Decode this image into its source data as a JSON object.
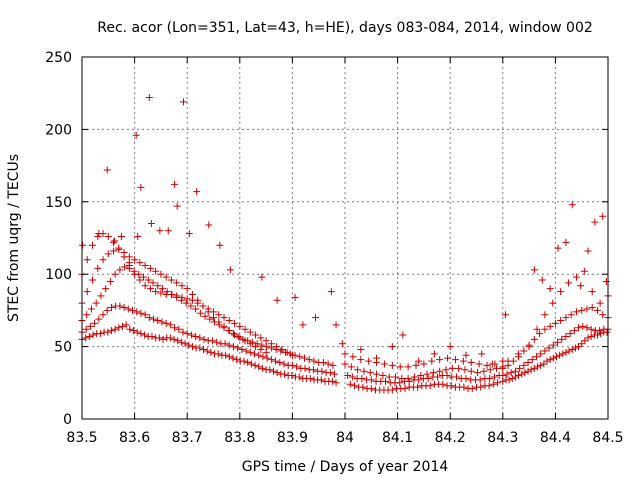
{
  "chart_data": {
    "type": "scatter",
    "title": "Rec. acor (Lon=351, Lat=43, h=HE), days 083-084, 2014, window 002",
    "xlabel": "GPS time / Days of year 2014",
    "ylabel": "STEC from uqrg / TECUs",
    "xlim": [
      83.5,
      84.5
    ],
    "ylim": [
      0,
      250
    ],
    "x_ticks": [
      83.5,
      83.6,
      83.7,
      83.8,
      83.9,
      84.0,
      84.1,
      84.2,
      84.3,
      84.4,
      84.5
    ],
    "x_tick_labels": [
      "83.5",
      "83.6",
      "83.7",
      "83.8",
      "83.9",
      "84",
      "84.1",
      "84.2",
      "84.3",
      "84.4",
      "84.5"
    ],
    "y_ticks": [
      0,
      50,
      100,
      150,
      200,
      250
    ],
    "y_tick_labels": [
      "0",
      "50",
      "100",
      "150",
      "200",
      "250"
    ],
    "grid": true,
    "legend": "none",
    "marker": "+",
    "color": "#cc0000",
    "series": [
      {
        "x": [
          83.5,
          83.507,
          83.514,
          83.521,
          83.528,
          83.535,
          83.542,
          83.549,
          83.556,
          83.563,
          83.57,
          83.577,
          83.584,
          83.591,
          83.598,
          83.605,
          83.612,
          83.619,
          83.626,
          83.633,
          83.64,
          83.647,
          83.654,
          83.661,
          83.668,
          83.675,
          83.682,
          83.689,
          83.696,
          83.703,
          83.71,
          83.717,
          83.724,
          83.731,
          83.738,
          83.745,
          83.752,
          83.759,
          83.766,
          83.773,
          83.78,
          83.787,
          83.794,
          83.801,
          83.808,
          83.815,
          83.822,
          83.829,
          83.836,
          83.843,
          83.85,
          83.857,
          83.864,
          83.871,
          83.878,
          83.885,
          83.892,
          83.899,
          83.906,
          83.913,
          83.92,
          83.927,
          83.934,
          83.941,
          83.948,
          83.955,
          83.962,
          83.969,
          83.976,
          83.983
        ],
        "y": [
          55,
          56,
          57,
          58,
          59,
          59,
          60,
          60,
          61,
          62,
          63,
          64,
          65,
          62,
          61,
          60,
          59,
          58,
          57,
          57,
          56,
          56,
          55,
          56,
          56,
          55,
          54,
          53,
          52,
          51,
          50,
          49,
          49,
          48,
          47,
          46,
          45,
          45,
          44,
          44,
          43,
          42,
          41,
          40,
          40,
          39,
          38,
          37,
          36,
          35,
          34,
          34,
          33,
          32,
          31,
          31,
          30,
          30,
          29,
          29,
          28,
          28,
          28,
          27,
          27,
          27,
          26,
          26,
          26,
          25
        ]
      },
      {
        "x": [
          83.5,
          83.508,
          83.516,
          83.524,
          83.532,
          83.54,
          83.548,
          83.556,
          83.564,
          83.572,
          83.58,
          83.588,
          83.596,
          83.604,
          83.612,
          83.62,
          83.628,
          83.636,
          83.644,
          83.652,
          83.66,
          83.668,
          83.676,
          83.684,
          83.692,
          83.7,
          83.708,
          83.716,
          83.724,
          83.732,
          83.74,
          83.748,
          83.756,
          83.764,
          83.772,
          83.78,
          83.788,
          83.796,
          83.804,
          83.812,
          83.82,
          83.828,
          83.836,
          83.844,
          83.852,
          83.86,
          83.868,
          83.876,
          83.884,
          83.892,
          83.9,
          83.908,
          83.916,
          83.924,
          83.932,
          83.94,
          83.948,
          83.956,
          83.964,
          83.972,
          83.98
        ],
        "y": [
          60,
          62,
          64,
          66,
          69,
          72,
          75,
          77,
          78,
          78,
          77,
          76,
          75,
          74,
          73,
          72,
          70,
          69,
          68,
          67,
          66,
          65,
          63,
          62,
          60,
          59,
          58,
          57,
          56,
          55,
          54,
          54,
          53,
          52,
          52,
          51,
          50,
          49,
          48,
          47,
          46,
          45,
          44,
          43,
          42,
          41,
          40,
          39,
          38,
          37,
          37,
          36,
          35,
          35,
          34,
          34,
          33,
          33,
          32,
          32,
          31
        ]
      },
      {
        "x": [
          83.5,
          83.509,
          83.518,
          83.527,
          83.536,
          83.545,
          83.554,
          83.563,
          83.572,
          83.581,
          83.59,
          83.599,
          83.608,
          83.617,
          83.626,
          83.635,
          83.644,
          83.653,
          83.662,
          83.671,
          83.68,
          83.689,
          83.698,
          83.707,
          83.716,
          83.725,
          83.734,
          83.743,
          83.752,
          83.761,
          83.77,
          83.779,
          83.788,
          83.797,
          83.806,
          83.815,
          83.824,
          83.833,
          83.842,
          83.851,
          83.86,
          83.869,
          83.878,
          83.887,
          83.896,
          83.905,
          83.914,
          83.923,
          83.932,
          83.941,
          83.95,
          83.959,
          83.968,
          83.977
        ],
        "y": [
          68,
          72,
          76,
          80,
          85,
          90,
          95,
          100,
          103,
          105,
          104,
          102,
          100,
          98,
          96,
          94,
          92,
          90,
          88,
          86,
          84,
          82,
          80,
          78,
          76,
          73,
          71,
          69,
          67,
          65,
          63,
          61,
          59,
          57,
          55,
          54,
          53,
          52,
          51,
          50,
          49,
          48,
          47,
          46,
          45,
          44,
          43,
          42,
          41,
          40,
          39,
          39,
          38,
          37
        ]
      },
      {
        "x": [
          83.5,
          83.51,
          83.52,
          83.53,
          83.54,
          83.55,
          83.56,
          83.57,
          83.58,
          83.59,
          83.6,
          83.61,
          83.62,
          83.63,
          83.64,
          83.65,
          83.66,
          83.67,
          83.68,
          83.69,
          83.7,
          83.71,
          83.72,
          83.73,
          83.74,
          83.75,
          83.76,
          83.77,
          83.78,
          83.79,
          83.8,
          83.81,
          83.82,
          83.83,
          83.84,
          83.85
        ],
        "y": [
          80,
          88,
          96,
          104,
          110,
          114,
          116,
          117,
          115,
          112,
          110,
          108,
          106,
          104,
          102,
          100,
          98,
          96,
          94,
          92,
          90,
          86,
          82,
          78,
          74,
          70,
          67,
          64,
          61,
          58,
          56,
          54,
          52,
          50,
          48,
          46
        ]
      },
      {
        "x": [
          83.5,
          83.51,
          83.52,
          83.53,
          83.54,
          83.55,
          83.56,
          83.57,
          83.58,
          83.59,
          83.6,
          83.61,
          83.62,
          83.63,
          83.64,
          83.65,
          83.66,
          83.67,
          83.68,
          83.69,
          83.7,
          83.71,
          83.72,
          83.73,
          83.74,
          83.75,
          83.76,
          83.77,
          83.78,
          83.79,
          83.8,
          83.81,
          83.82,
          83.83,
          83.84,
          83.85,
          83.86,
          83.87,
          83.88,
          83.89,
          83.9
        ],
        "y": [
          100,
          110,
          120,
          126,
          128,
          126,
          122,
          118,
          112,
          106,
          100,
          96,
          92,
          90,
          88,
          87,
          86,
          86,
          85,
          84,
          83,
          82,
          80,
          78,
          76,
          74,
          72,
          70,
          68,
          66,
          64,
          62,
          60,
          58,
          56,
          54,
          52,
          50,
          48,
          46,
          44
        ]
      },
      {
        "x": [
          83.501,
          83.532,
          83.548,
          83.562,
          83.575,
          83.59,
          83.603,
          83.606,
          83.612,
          83.628,
          83.632,
          83.648,
          83.664,
          83.676,
          83.681,
          83.693,
          83.704,
          83.718,
          83.741,
          83.762,
          83.782,
          83.842,
          83.871,
          83.905,
          83.92,
          83.944,
          83.974,
          83.983,
          83.995
        ],
        "y": [
          120,
          128,
          172,
          123,
          126,
          108,
          196,
          126,
          160,
          222,
          135,
          130,
          130,
          162,
          147,
          219,
          128,
          157,
          134,
          120,
          103,
          98,
          82,
          84,
          65,
          70,
          88,
          65,
          52
        ]
      },
      {
        "x": [
          84.01,
          84.018,
          84.026,
          84.034,
          84.042,
          84.05,
          84.058,
          84.066,
          84.074,
          84.082,
          84.09,
          84.098,
          84.106,
          84.114,
          84.122,
          84.13,
          84.138,
          84.146,
          84.154,
          84.162,
          84.17,
          84.178,
          84.186,
          84.194,
          84.202,
          84.21,
          84.218,
          84.226,
          84.234,
          84.242,
          84.25,
          84.258,
          84.266,
          84.274,
          84.282,
          84.29
        ],
        "y": [
          24,
          23,
          22,
          22,
          21,
          21,
          20,
          20,
          20,
          20,
          20,
          21,
          21,
          21,
          22,
          22,
          22,
          23,
          23,
          23,
          24,
          24,
          24,
          23,
          23,
          22,
          22,
          22,
          21,
          21,
          22,
          22,
          23,
          23,
          24,
          25
        ]
      },
      {
        "x": [
          84.005,
          84.014,
          84.023,
          84.032,
          84.041,
          84.05,
          84.059,
          84.068,
          84.077,
          84.086,
          84.095,
          84.104,
          84.113,
          84.122,
          84.131,
          84.14,
          84.149,
          84.158,
          84.167,
          84.176,
          84.185,
          84.194,
          84.203,
          84.212,
          84.221,
          84.23,
          84.239,
          84.248,
          84.257,
          84.266,
          84.275,
          84.284,
          84.293
        ],
        "y": [
          30,
          29,
          28,
          28,
          27,
          27,
          26,
          26,
          26,
          25,
          25,
          25,
          26,
          26,
          27,
          27,
          28,
          28,
          29,
          29,
          30,
          30,
          29,
          29,
          28,
          28,
          27,
          27,
          27,
          28,
          28,
          29,
          30
        ]
      },
      {
        "x": [
          84.0,
          84.012,
          84.024,
          84.036,
          84.048,
          84.06,
          84.072,
          84.084,
          84.096,
          84.108,
          84.12,
          84.132,
          84.144,
          84.156,
          84.168,
          84.18,
          84.192,
          84.204,
          84.216,
          84.228,
          84.24,
          84.252,
          84.264,
          84.276,
          84.288,
          84.3
        ],
        "y": [
          38,
          36,
          34,
          33,
          32,
          31,
          30,
          29,
          29,
          28,
          28,
          29,
          30,
          31,
          32,
          33,
          34,
          35,
          35,
          34,
          33,
          32,
          33,
          34,
          35,
          36
        ]
      },
      {
        "x": [
          84.0,
          84.015,
          84.03,
          84.045,
          84.06,
          84.075,
          84.09,
          84.105,
          84.12,
          84.135,
          84.15,
          84.165,
          84.18,
          84.195,
          84.21,
          84.225,
          84.24,
          84.255,
          84.27,
          84.285,
          84.3
        ],
        "y": [
          45,
          43,
          41,
          40,
          39,
          38,
          37,
          36,
          36,
          37,
          38,
          40,
          41,
          42,
          41,
          40,
          39,
          38,
          37,
          38,
          40
        ]
      },
      {
        "x": [
          84.03,
          84.06,
          84.09,
          84.11,
          84.14,
          84.17,
          84.2,
          84.23,
          84.26,
          84.28
        ],
        "y": [
          48,
          42,
          50,
          58,
          40,
          45,
          50,
          44,
          45,
          38
        ]
      },
      {
        "x": [
          84.3,
          84.306,
          84.312,
          84.318,
          84.324,
          84.33,
          84.336,
          84.342,
          84.348,
          84.354,
          84.36,
          84.366,
          84.372,
          84.378,
          84.384,
          84.39,
          84.396,
          84.402,
          84.408,
          84.414,
          84.42,
          84.426,
          84.432,
          84.438,
          84.444,
          84.45,
          84.456,
          84.462,
          84.468,
          84.474,
          84.48,
          84.486,
          84.492,
          84.498
        ],
        "y": [
          26,
          27,
          27,
          28,
          29,
          30,
          31,
          32,
          33,
          34,
          35,
          36,
          37,
          38,
          40,
          41,
          42,
          43,
          44,
          45,
          46,
          47,
          48,
          49,
          50,
          52,
          54,
          56,
          57,
          58,
          58,
          59,
          60,
          60
        ]
      },
      {
        "x": [
          84.3,
          84.308,
          84.316,
          84.324,
          84.332,
          84.34,
          84.348,
          84.356,
          84.364,
          84.372,
          84.38,
          84.388,
          84.396,
          84.404,
          84.412,
          84.42,
          84.428,
          84.436,
          84.444,
          84.452,
          84.46,
          84.468,
          84.476,
          84.484,
          84.492,
          84.5
        ],
        "y": [
          30,
          31,
          32,
          33,
          35,
          37,
          39,
          41,
          43,
          45,
          47,
          49,
          51,
          53,
          55,
          57,
          59,
          61,
          63,
          64,
          63,
          62,
          61,
          61,
          62,
          62
        ]
      },
      {
        "x": [
          84.3,
          84.31,
          84.32,
          84.33,
          84.34,
          84.35,
          84.36,
          84.37,
          84.38,
          84.39,
          84.4,
          84.41,
          84.42,
          84.43,
          84.44,
          84.45,
          84.46,
          84.47,
          84.48,
          84.49,
          84.5
        ],
        "y": [
          35,
          37,
          40,
          43,
          47,
          51,
          55,
          59,
          62,
          64,
          66,
          68,
          70,
          72,
          74,
          75,
          76,
          77,
          75,
          72,
          70
        ]
      },
      {
        "x": [
          84.31,
          84.33,
          84.35,
          84.365,
          84.38,
          84.395,
          84.41,
          84.425,
          84.44,
          84.455,
          84.47,
          84.485,
          84.5
        ],
        "y": [
          40,
          45,
          50,
          62,
          72,
          80,
          88,
          94,
          98,
          102,
          88,
          80,
          85
        ]
      },
      {
        "x": [
          84.305,
          84.36,
          84.375,
          84.39,
          84.405,
          84.42,
          84.432,
          84.448,
          84.462,
          84.475,
          84.49,
          84.497
        ],
        "y": [
          72,
          103,
          96,
          90,
          118,
          122,
          148,
          92,
          116,
          136,
          140,
          95
        ]
      }
    ]
  }
}
